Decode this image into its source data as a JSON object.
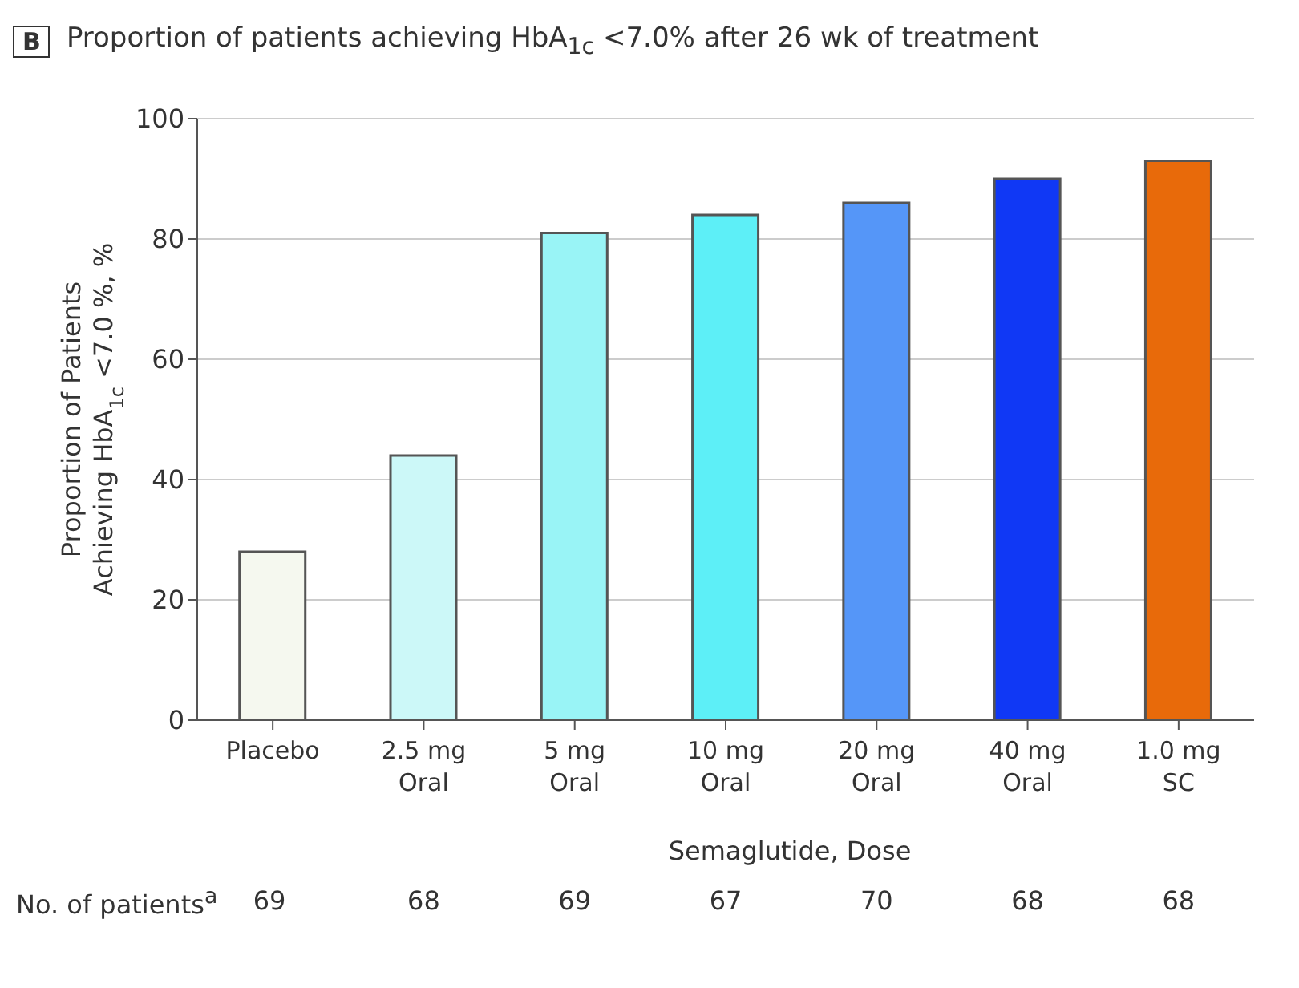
{
  "chart_data": {
    "type": "bar",
    "title": "Proportion of patients achieving HbA$_{1c}$ <7.0% after 26 wk of treatment",
    "xlabel": "Semaglutide, Dose",
    "ylabel": "Proportion of Patients\nAchieving HbA$_{1c}$ <7.0 %, %",
    "categories": [
      "Placebo",
      "2.5 mg\nOral",
      "5 mg\nOral",
      "10 mg\nOral",
      "20 mg\nOral",
      "40 mg\nOral",
      "1.0 mg\nSC"
    ],
    "values": [
      28,
      44,
      81,
      84,
      86,
      90,
      93
    ],
    "colors": [
      "#f5f8ef",
      "#ccf8f8",
      "#99f4f6",
      "#5deff7",
      "#5596f8",
      "#1038f5",
      "#e86a0a"
    ],
    "ylim": [
      0,
      100
    ],
    "yticks": [
      0,
      20,
      40,
      60,
      80,
      100
    ],
    "grid": "y",
    "legend": false,
    "annotations": [
      "B",
      "No. of patients$^{a}$",
      "69",
      "68",
      "69",
      "67",
      "70",
      "68",
      "68"
    ]
  }
}
